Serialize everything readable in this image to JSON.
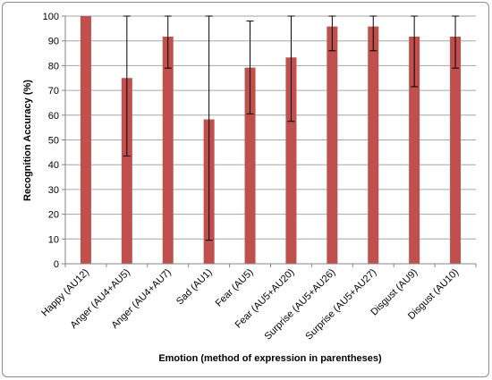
{
  "chart_data": {
    "type": "bar",
    "title": "",
    "xlabel": "Emotion (method of expression in parentheses)",
    "ylabel": "Recognition Accuracy (%)",
    "ylim": [
      0,
      100
    ],
    "y_ticks": [
      0,
      10,
      20,
      30,
      40,
      50,
      60,
      70,
      80,
      90,
      100
    ],
    "grid": true,
    "legend": "none",
    "categories": [
      "Happy (AU12)",
      "Anger (AU4+AU5)",
      "Anger (AU4+AU7)",
      "Sad (AU1)",
      "Fear (AU5)",
      "Fear (AU5+AU20)",
      "Surprise (AU5+AU26)",
      "Surprise (AU5+AU27)",
      "Disgust (AU9)",
      "Disgust (AU10)"
    ],
    "series": [
      {
        "values": [
          100,
          75,
          91.7,
          58.3,
          79.2,
          83.3,
          95.8,
          95.8,
          91.7,
          91.7
        ],
        "error_low": [
          100,
          43.5,
          79,
          9.5,
          60.5,
          57.5,
          86,
          86,
          71.5,
          79
        ],
        "error_high": [
          100,
          100,
          100,
          100,
          98,
          100,
          100,
          100,
          100,
          100
        ],
        "color": "#c0504d"
      }
    ]
  }
}
